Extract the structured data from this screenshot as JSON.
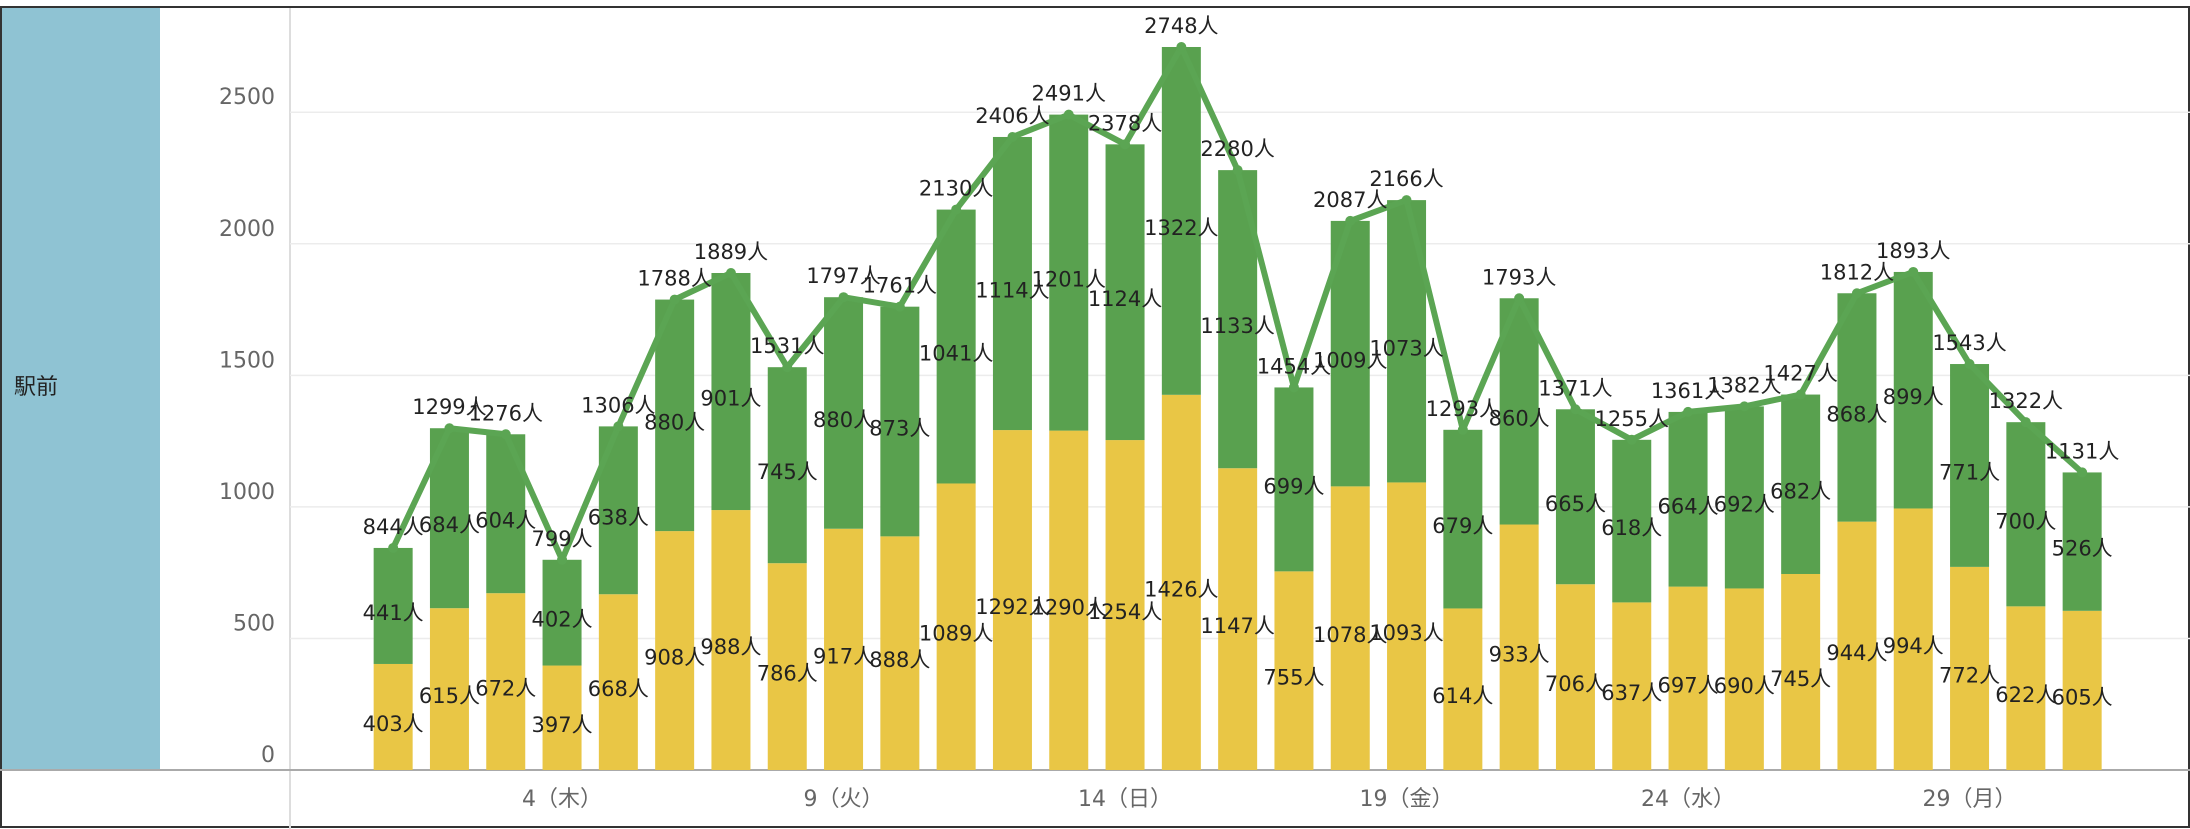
{
  "row_header": "駅前",
  "chart_data": {
    "type": "bar",
    "stacked": true,
    "categories": [
      null,
      null,
      null,
      "4（木）",
      null,
      null,
      null,
      null,
      "9（火）",
      null,
      null,
      null,
      null,
      "14（日）",
      null,
      null,
      null,
      null,
      "19（金）",
      null,
      null,
      null,
      null,
      "24（水）",
      null,
      null,
      null,
      null,
      "29（月）",
      null,
      null
    ],
    "series": [
      {
        "color": "#e9c645",
        "values": [
          403,
          615,
          672,
          397,
          668,
          908,
          988,
          786,
          917,
          888,
          1089,
          1292,
          1290,
          1254,
          1426,
          1147,
          755,
          1078,
          1093,
          614,
          933,
          706,
          637,
          697,
          690,
          745,
          944,
          994,
          772,
          622,
          605
        ],
        "value_labels": [
          "403人",
          "615人",
          "672人",
          "397人",
          "668人",
          "908人",
          "988人",
          "786人",
          "917人",
          "888人",
          "1089人",
          "1292人",
          "1290人",
          "1254人",
          "1426人",
          "1147人",
          "755人",
          "1078人",
          "1093人",
          "614人",
          "933人",
          "706人",
          "637人",
          "697人",
          "690人",
          "745人",
          "944人",
          "994人",
          "772人",
          "622人",
          "605人"
        ]
      },
      {
        "color": "#59a14f",
        "values": [
          441,
          684,
          604,
          402,
          638,
          880,
          901,
          745,
          880,
          873,
          1041,
          1114,
          1201,
          1124,
          1322,
          1133,
          699,
          1009,
          1073,
          679,
          860,
          665,
          618,
          664,
          692,
          682,
          868,
          899,
          771,
          700,
          526
        ],
        "value_labels": [
          "441人",
          "684人",
          "604人",
          "402人",
          "638人",
          "880人",
          "901人",
          "745人",
          "880人",
          "873人",
          "1041人",
          "1114人",
          "1201人",
          "1124人",
          "1322人",
          "1133人",
          "699人",
          "1009人",
          "1073人",
          "679人",
          "860人",
          "665人",
          "618人",
          "664人",
          "692人",
          "682人",
          "868人",
          "899人",
          "771人",
          "700人",
          "526人"
        ]
      }
    ],
    "line": {
      "color": "#5ba553",
      "values": [
        844,
        1299,
        1276,
        799,
        1306,
        1788,
        1889,
        1531,
        1797,
        1761,
        2130,
        2406,
        2491,
        2378,
        2748,
        2280,
        1454,
        2087,
        2166,
        1293,
        1793,
        1371,
        1255,
        1361,
        1382,
        1427,
        1812,
        1893,
        1543,
        1322,
        1131
      ],
      "value_labels": [
        "844人",
        "1299人",
        "1276人",
        "799人",
        "1306人",
        "1788人",
        "1889人",
        "1531人",
        "1797人",
        "1761人",
        "2130人",
        "2406人",
        "2491人",
        "2378人",
        "2748人",
        "2280人",
        "1454人",
        "2087人",
        "2166人",
        "1293人",
        "1793人",
        "1371人",
        "1255人",
        "1361人",
        "1382人",
        "1427人",
        "1812人",
        "1893人",
        "1543人",
        "1322人",
        "1131人"
      ]
    },
    "ylim": [
      0,
      2900
    ],
    "yticks": [
      0,
      500,
      1000,
      1500,
      2000,
      2500
    ],
    "grid": true
  }
}
